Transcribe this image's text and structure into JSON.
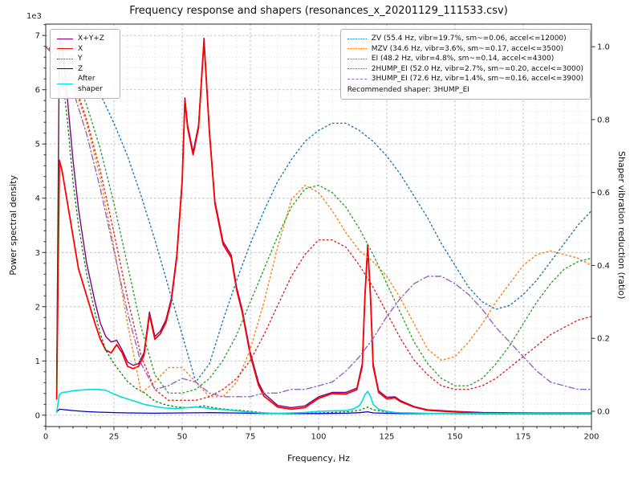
{
  "chart_data": {
    "type": "line",
    "title": "Frequency response and shapers (resonances_x_20201129_111533.csv)",
    "xlabel": "Frequency, Hz",
    "ylabel_left": "Power spectral density",
    "ylabel_right": "Shaper vibration reduction (ratio)",
    "offset_text": "1e3",
    "x_min": 0,
    "x_max": 200,
    "y_left_min": 0,
    "y_left_max": 7000,
    "y_right_min": 0.0,
    "y_right_max": 1.0,
    "grid": "both",
    "legend_position_left": "upper left",
    "legend_position_right": "upper right",
    "xticks": [
      "0",
      "25",
      "50",
      "75",
      "100",
      "125",
      "150",
      "175",
      "200"
    ],
    "yticks_left": [
      "0",
      "1",
      "2",
      "3",
      "4",
      "5",
      "6",
      "7"
    ],
    "yticks_right": [
      "0.0",
      "0.2",
      "0.4",
      "0.6",
      "0.8",
      "1.0"
    ],
    "recommended_text": "Recommended shaper: 3HUMP_EI",
    "psd_series": [
      {
        "name": "X+Y+Z",
        "color": "#800080",
        "style": "solid",
        "x": [
          4,
          5,
          6,
          8,
          10,
          12,
          15,
          18,
          20,
          22,
          24,
          26,
          28,
          30,
          32,
          34,
          36,
          38,
          40,
          42,
          44,
          46,
          48,
          50,
          51,
          52,
          54,
          56,
          58,
          60,
          62,
          65,
          68,
          70,
          72,
          75,
          78,
          80,
          85,
          90,
          95,
          100,
          105,
          110,
          114,
          116,
          117,
          118,
          119,
          120,
          122,
          125,
          128,
          130,
          135,
          140,
          150,
          160,
          170,
          180,
          190,
          200
        ],
        "y": [
          600,
          7000,
          6800,
          5800,
          4700,
          3800,
          2800,
          2100,
          1700,
          1450,
          1350,
          1380,
          1200,
          980,
          920,
          950,
          1150,
          1900,
          1450,
          1550,
          1750,
          2150,
          2950,
          4350,
          5850,
          5350,
          4850,
          5350,
          6950,
          5250,
          3950,
          3200,
          2950,
          2350,
          1950,
          1150,
          600,
          400,
          180,
          140,
          170,
          340,
          420,
          420,
          500,
          950,
          2250,
          3150,
          2250,
          950,
          450,
          330,
          340,
          270,
          160,
          100,
          70,
          50,
          45,
          40,
          40,
          40
        ]
      },
      {
        "name": "X",
        "color": "#ff0000",
        "style": "solid",
        "x": [
          4,
          5,
          6,
          8,
          10,
          12,
          15,
          18,
          20,
          22,
          24,
          26,
          28,
          30,
          32,
          34,
          36,
          38,
          40,
          42,
          44,
          46,
          48,
          50,
          51,
          52,
          54,
          56,
          58,
          60,
          62,
          65,
          68,
          70,
          72,
          75,
          78,
          80,
          85,
          90,
          95,
          100,
          105,
          110,
          114,
          116,
          117,
          118,
          119,
          120,
          122,
          125,
          128,
          130,
          135,
          140,
          150,
          160,
          170,
          180,
          190,
          200
        ],
        "y": [
          300,
          4700,
          4500,
          3900,
          3300,
          2700,
          2200,
          1700,
          1400,
          1200,
          1150,
          1300,
          1150,
          900,
          860,
          900,
          1100,
          1850,
          1400,
          1500,
          1700,
          2100,
          2900,
          4300,
          5800,
          5300,
          4800,
          5300,
          6900,
          5200,
          3900,
          3150,
          2900,
          2300,
          1900,
          1100,
          550,
          350,
          150,
          110,
          140,
          310,
          400,
          390,
          470,
          900,
          2200,
          3100,
          2200,
          900,
          420,
          300,
          320,
          250,
          150,
          90,
          60,
          40,
          35,
          30,
          30,
          30
        ]
      },
      {
        "name": "Y",
        "color": "#008000",
        "style": "dotted",
        "x": [
          4,
          5,
          6,
          8,
          10,
          12,
          15,
          18,
          20,
          22,
          25,
          28,
          30,
          33,
          36,
          40,
          44,
          48,
          52,
          56,
          58,
          60,
          64,
          68,
          72,
          76,
          80,
          90,
          100,
          110,
          115,
          117,
          118,
          120,
          125,
          130,
          140,
          160,
          180,
          200
        ],
        "y": [
          500,
          6500,
          6300,
          5400,
          4300,
          3500,
          2600,
          1900,
          1500,
          1200,
          950,
          750,
          620,
          500,
          420,
          260,
          190,
          150,
          140,
          160,
          170,
          150,
          120,
          100,
          85,
          65,
          45,
          30,
          40,
          60,
          90,
          130,
          150,
          100,
          60,
          40,
          30,
          25,
          25,
          25
        ]
      },
      {
        "name": "Z",
        "color": "#0000cd",
        "style": "solid",
        "x": [
          4,
          5,
          8,
          10,
          15,
          20,
          25,
          30,
          40,
          50,
          60,
          70,
          80,
          90,
          100,
          110,
          115,
          118,
          120,
          130,
          140,
          160,
          180,
          200
        ],
        "y": [
          60,
          110,
          95,
          85,
          65,
          55,
          48,
          42,
          36,
          42,
          46,
          40,
          32,
          28,
          30,
          36,
          46,
          62,
          42,
          30,
          28,
          26,
          25,
          25
        ]
      },
      {
        "name": "After shaper",
        "color": "#00dddd",
        "style": "solid",
        "x": [
          4,
          5,
          6,
          8,
          10,
          12,
          15,
          18,
          20,
          22,
          25,
          28,
          30,
          33,
          36,
          40,
          44,
          48,
          50,
          52,
          55,
          58,
          60,
          63,
          66,
          70,
          74,
          78,
          82,
          86,
          90,
          95,
          100,
          105,
          110,
          113,
          115,
          116,
          117,
          118,
          119,
          120,
          122,
          125,
          128,
          130,
          135,
          140,
          150,
          160,
          180,
          200
        ],
        "y": [
          50,
          380,
          420,
          430,
          450,
          460,
          470,
          475,
          470,
          460,
          390,
          330,
          300,
          250,
          200,
          160,
          130,
          120,
          130,
          140,
          150,
          140,
          120,
          110,
          100,
          80,
          60,
          45,
          38,
          36,
          40,
          50,
          70,
          80,
          85,
          120,
          180,
          260,
          380,
          440,
          350,
          200,
          110,
          70,
          50,
          45,
          40,
          35,
          30,
          30,
          30,
          30
        ]
      }
    ],
    "shaper_x": [
      0,
      5,
      10,
      15,
      20,
      25,
      30,
      35,
      40,
      45,
      50,
      55,
      60,
      65,
      70,
      75,
      80,
      85,
      90,
      95,
      100,
      105,
      110,
      115,
      120,
      125,
      130,
      135,
      140,
      145,
      150,
      155,
      160,
      165,
      170,
      175,
      180,
      185,
      190,
      195,
      200
    ],
    "shaper_series": [
      {
        "name": "ZV",
        "label": "ZV (55.4 Hz, vibr=19.7%, sm~=0.06, accel<=12000)",
        "color": "#1f77b4",
        "style": "dotted",
        "y": [
          1.0,
          0.99,
          0.97,
          0.93,
          0.87,
          0.79,
          0.7,
          0.59,
          0.47,
          0.34,
          0.21,
          0.08,
          0.13,
          0.25,
          0.36,
          0.46,
          0.55,
          0.63,
          0.69,
          0.74,
          0.77,
          0.79,
          0.79,
          0.77,
          0.74,
          0.7,
          0.65,
          0.59,
          0.53,
          0.46,
          0.4,
          0.34,
          0.3,
          0.28,
          0.29,
          0.32,
          0.36,
          0.41,
          0.46,
          0.51,
          0.55
        ]
      },
      {
        "name": "MZV",
        "label": "MZV (34.6 Hz, vibr=3.6%, sm~=0.17, accel<=3500)",
        "color": "#ff7f0e",
        "style": "dotted",
        "y": [
          1.0,
          0.97,
          0.9,
          0.79,
          0.64,
          0.45,
          0.24,
          0.05,
          0.08,
          0.12,
          0.12,
          0.08,
          0.04,
          0.04,
          0.08,
          0.17,
          0.3,
          0.45,
          0.58,
          0.62,
          0.6,
          0.55,
          0.49,
          0.44,
          0.41,
          0.37,
          0.31,
          0.24,
          0.17,
          0.14,
          0.15,
          0.19,
          0.24,
          0.3,
          0.35,
          0.4,
          0.43,
          0.44,
          0.43,
          0.42,
          0.4
        ]
      },
      {
        "name": "EI",
        "label": "EI (48.2 Hz, vibr=4.8%, sm~=0.14, accel<=4300)",
        "color": "#2ca02c",
        "style": "dotted",
        "y": [
          1.0,
          0.98,
          0.93,
          0.84,
          0.72,
          0.57,
          0.4,
          0.23,
          0.1,
          0.05,
          0.05,
          0.06,
          0.09,
          0.14,
          0.21,
          0.3,
          0.39,
          0.48,
          0.56,
          0.61,
          0.62,
          0.6,
          0.56,
          0.5,
          0.43,
          0.35,
          0.27,
          0.19,
          0.13,
          0.09,
          0.07,
          0.07,
          0.09,
          0.13,
          0.18,
          0.24,
          0.3,
          0.35,
          0.39,
          0.41,
          0.42
        ]
      },
      {
        "name": "2HUMP_EI",
        "label": "2HUMP_EI (52.0 Hz, vibr=2.7%, sm~=0.20, accel<=3000)",
        "color": "#d62728",
        "style": "dotted",
        "y": [
          1.0,
          0.97,
          0.91,
          0.8,
          0.66,
          0.49,
          0.31,
          0.15,
          0.06,
          0.03,
          0.03,
          0.03,
          0.04,
          0.06,
          0.09,
          0.14,
          0.21,
          0.29,
          0.37,
          0.43,
          0.47,
          0.47,
          0.45,
          0.4,
          0.34,
          0.27,
          0.2,
          0.14,
          0.1,
          0.07,
          0.06,
          0.06,
          0.07,
          0.09,
          0.12,
          0.15,
          0.18,
          0.21,
          0.23,
          0.25,
          0.26
        ]
      },
      {
        "name": "3HUMP_EI",
        "label": "3HUMP_EI (72.6 Hz, vibr=1.4%, sm~=0.16, accel<=3900)",
        "color": "#9467bd",
        "style": "dashdot",
        "y": [
          1.0,
          0.96,
          0.88,
          0.76,
          0.61,
          0.44,
          0.27,
          0.13,
          0.06,
          0.07,
          0.09,
          0.08,
          0.05,
          0.04,
          0.04,
          0.04,
          0.05,
          0.05,
          0.06,
          0.06,
          0.07,
          0.08,
          0.11,
          0.15,
          0.2,
          0.26,
          0.31,
          0.35,
          0.37,
          0.37,
          0.35,
          0.32,
          0.28,
          0.23,
          0.19,
          0.15,
          0.11,
          0.08,
          0.07,
          0.06,
          0.06
        ]
      }
    ]
  }
}
